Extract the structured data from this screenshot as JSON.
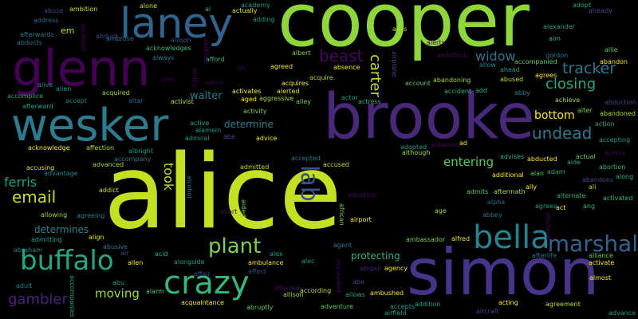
{
  "words": [
    {
      "text": "alice",
      "color": "#c3e021"
    },
    {
      "text": "cooper",
      "color": "#8ed63b"
    },
    {
      "text": "simon",
      "color": "#46338a"
    },
    {
      "text": "brooke",
      "color": "#482878"
    },
    {
      "text": "wesker",
      "color": "#2c7b8e"
    },
    {
      "text": "glenn",
      "color": "#440154"
    },
    {
      "text": "laney",
      "color": "#31648d"
    },
    {
      "text": "crazy",
      "color": "#35b779"
    },
    {
      "text": "bella",
      "color": "#26828e"
    },
    {
      "text": "buffalo",
      "color": "#22a884"
    },
    {
      "text": "marshal",
      "color": "#33638d"
    },
    {
      "text": "plant",
      "color": "#7ad151"
    },
    {
      "text": "lab",
      "color": "#3b528b"
    },
    {
      "text": "carter",
      "color": "#b8de29"
    },
    {
      "text": "tracker",
      "color": "#2a788e"
    },
    {
      "text": "undead",
      "color": "#2a788e"
    },
    {
      "text": "email",
      "color": "#c8e020"
    },
    {
      "text": "beast",
      "color": "#46075a"
    },
    {
      "text": "closing",
      "color": "#22a884"
    },
    {
      "text": "widow",
      "color": "#2c728e"
    },
    {
      "text": "gambler",
      "color": "#482475"
    },
    {
      "text": "ferris",
      "color": "#1f9e89"
    },
    {
      "text": "took",
      "color": "#bddf26"
    },
    {
      "text": "protecting",
      "color": "#2db27d"
    },
    {
      "text": "entering",
      "color": "#5ec962"
    },
    {
      "text": "moving",
      "color": "#a0da39"
    },
    {
      "text": "determine",
      "color": "#26828e"
    },
    {
      "text": "determines",
      "color": "#26828e"
    },
    {
      "text": "walter",
      "color": "#2a788e"
    },
    {
      "text": "bottom",
      "color": "#fde725"
    },
    {
      "text": "afterwards",
      "color": "#2a788e"
    },
    {
      "text": "address",
      "color": "#31688e"
    },
    {
      "text": "abducts",
      "color": "#2c728e"
    },
    {
      "text": "em",
      "color": "#b5de2b"
    },
    {
      "text": "ambrose",
      "color": "#2a788e"
    },
    {
      "text": "allison",
      "color": "#3b528b"
    },
    {
      "text": "alone",
      "color": "#c2df23"
    },
    {
      "text": "al",
      "color": "#2db27d"
    },
    {
      "text": "actually",
      "color": "#e5e419"
    },
    {
      "text": "academy",
      "color": "#1f9e89"
    },
    {
      "text": "adding",
      "color": "#1f9e89"
    },
    {
      "text": "alias",
      "color": "#b5de2b"
    },
    {
      "text": "ambition",
      "color": "#c8e020"
    },
    {
      "text": "abduct",
      "color": "#3e4a89"
    },
    {
      "text": "adopt",
      "color": "#22a884"
    },
    {
      "text": "already",
      "color": "#3e4a89"
    },
    {
      "text": "alexander",
      "color": "#1f9e89"
    },
    {
      "text": "aim",
      "color": "#35b779"
    },
    {
      "text": "allie",
      "color": "#5ec962"
    },
    {
      "text": "abandon",
      "color": "#fde725"
    },
    {
      "text": "gordon",
      "color": "#2a788e"
    },
    {
      "text": "acknowledges",
      "color": "#35b779"
    },
    {
      "text": "always",
      "color": "#26828e"
    },
    {
      "text": "afford",
      "color": "#35b779"
    },
    {
      "text": "agreed",
      "color": "#fde725"
    },
    {
      "text": "albert",
      "color": "#7ad151"
    },
    {
      "text": "absence",
      "color": "#fde725"
    },
    {
      "text": "airplane",
      "color": "#3e4a89"
    },
    {
      "text": "ambitious",
      "color": "#46075a"
    },
    {
      "text": "allow",
      "color": "#25858e"
    },
    {
      "text": "ahead",
      "color": "#1f9e89"
    },
    {
      "text": "accompanied",
      "color": "#5ec962"
    },
    {
      "text": "agrees",
      "color": "#fde725"
    },
    {
      "text": "abused",
      "color": "#b8de29"
    },
    {
      "text": "alive",
      "color": "#25858e"
    },
    {
      "text": "alien",
      "color": "#1f9e89"
    },
    {
      "text": "also",
      "color": "#440154"
    },
    {
      "text": "ability",
      "color": "#440154"
    },
    {
      "text": "aaron",
      "color": "#440154"
    },
    {
      "text": "acquires",
      "color": "#fde725"
    },
    {
      "text": "acquire",
      "color": "#a0da39"
    },
    {
      "text": "account",
      "color": "#5ec962"
    },
    {
      "text": "abandoning",
      "color": "#a0da39"
    },
    {
      "text": "abby",
      "color": "#26828e"
    },
    {
      "text": "accomplice",
      "color": "#22a884"
    },
    {
      "text": "acquired",
      "color": "#a0da39"
    },
    {
      "text": "activates",
      "color": "#fde725"
    },
    {
      "text": "aggressive",
      "color": "#a0da39"
    },
    {
      "text": "alerted",
      "color": "#e5e419"
    },
    {
      "text": "actor",
      "color": "#1f9e89"
    },
    {
      "text": "accident",
      "color": "#2db27d"
    },
    {
      "text": "add",
      "color": "#2db27d"
    },
    {
      "text": "achieve",
      "color": "#a0da39"
    },
    {
      "text": "abduction",
      "color": "#3e4a89"
    },
    {
      "text": "accept",
      "color": "#26828e"
    },
    {
      "text": "altar",
      "color": "#31688e"
    },
    {
      "text": "activist",
      "color": "#b8de29"
    },
    {
      "text": "aged",
      "color": "#fde725"
    },
    {
      "text": "alley",
      "color": "#7ad151"
    },
    {
      "text": "actress",
      "color": "#2db27d"
    },
    {
      "text": "alter",
      "color": "#7ad151"
    },
    {
      "text": "abandoned",
      "color": "#b5de2b"
    },
    {
      "text": "afterward",
      "color": "#22a884"
    },
    {
      "text": "active",
      "color": "#1f9e89"
    },
    {
      "text": "activity",
      "color": "#7ad151"
    },
    {
      "text": "action",
      "color": "#22a884"
    },
    {
      "text": "acknowledge",
      "color": "#fde725"
    },
    {
      "text": "affection",
      "color": "#b5de2b"
    },
    {
      "text": "advice",
      "color": "#fde725"
    },
    {
      "text": "accepting",
      "color": "#1f9e89"
    },
    {
      "text": "ad",
      "color": "#fde725"
    },
    {
      "text": "adopted",
      "color": "#1f9e89"
    },
    {
      "text": "although",
      "color": "#a0da39"
    },
    {
      "text": "accepted",
      "color": "#2a788e"
    },
    {
      "text": "advises",
      "color": "#2db27d"
    },
    {
      "text": "abducted",
      "color": "#fde725"
    },
    {
      "text": "actual",
      "color": "#5ec962"
    },
    {
      "text": "aide",
      "color": "#22a884"
    },
    {
      "text": "across",
      "color": "#46075a"
    },
    {
      "text": "albright",
      "color": "#1f9e89"
    },
    {
      "text": "accompany",
      "color": "#2c728e"
    },
    {
      "text": "advanced",
      "color": "#a0da39"
    },
    {
      "text": "accusing",
      "color": "#e5e419"
    },
    {
      "text": "advantage",
      "color": "#26828e"
    },
    {
      "text": "admitted",
      "color": "#b8de29"
    },
    {
      "text": "accused",
      "color": "#b8de29"
    },
    {
      "text": "additional",
      "color": "#fde725"
    },
    {
      "text": "alan",
      "color": "#5ec962"
    },
    {
      "text": "adam",
      "color": "#22a884"
    },
    {
      "text": "abortion",
      "color": "#35b779"
    },
    {
      "text": "ali",
      "color": "#b8de29"
    },
    {
      "text": "ally",
      "color": "#fde725"
    },
    {
      "text": "alternate",
      "color": "#2db27d"
    },
    {
      "text": "activated",
      "color": "#35b779"
    },
    {
      "text": "addict",
      "color": "#c8e020"
    },
    {
      "text": "alcohol",
      "color": "#2a788e"
    },
    {
      "text": "admits",
      "color": "#5ec962"
    },
    {
      "text": "aftermath",
      "color": "#a0da39"
    },
    {
      "text": "along",
      "color": "#2db27d"
    },
    {
      "text": "adoptive",
      "color": "#46075a"
    },
    {
      "text": "alpha",
      "color": "#31688e"
    },
    {
      "text": "agrees",
      "color": "#1f9e89"
    },
    {
      "text": "act",
      "color": "#fde725"
    },
    {
      "text": "ang",
      "color": "#35b779"
    },
    {
      "text": "allowing",
      "color": "#a0da39"
    },
    {
      "text": "agreeing",
      "color": "#26828e"
    },
    {
      "text": "abort",
      "color": "#46075a"
    },
    {
      "text": "aided",
      "color": "#7ad151"
    },
    {
      "text": "age",
      "color": "#a0da39"
    },
    {
      "text": "abbey",
      "color": "#2c728e"
    },
    {
      "text": "african",
      "color": "#7ad151"
    },
    {
      "text": "airport",
      "color": "#fde725"
    },
    {
      "text": "admitting",
      "color": "#1f9e89"
    },
    {
      "text": "align",
      "color": "#e5e419"
    },
    {
      "text": "abraham",
      "color": "#26828e"
    },
    {
      "text": "abusive",
      "color": "#2a788e"
    },
    {
      "text": "air",
      "color": "#3e4a89"
    },
    {
      "text": "acid",
      "color": "#2db27d"
    },
    {
      "text": "alex",
      "color": "#1f9e89"
    },
    {
      "text": "agent",
      "color": "#2a788e"
    },
    {
      "text": "ambassador",
      "color": "#7ad151"
    },
    {
      "text": "alfred",
      "color": "#e5e419"
    },
    {
      "text": "afterlife",
      "color": "#2a788e"
    },
    {
      "text": "alliance",
      "color": "#5ec962"
    },
    {
      "text": "activate",
      "color": "#fde725"
    },
    {
      "text": "allen",
      "color": "#fde725"
    },
    {
      "text": "alongside",
      "color": "#1f9e89"
    },
    {
      "text": "ambulance",
      "color": "#fde725"
    },
    {
      "text": "alec",
      "color": "#1f9e89"
    },
    {
      "text": "agency",
      "color": "#fde725"
    },
    {
      "text": "abigail",
      "color": "#482475"
    },
    {
      "text": "affect",
      "color": "#3e4a89"
    },
    {
      "text": "abe",
      "color": "#3e4a89"
    },
    {
      "text": "affair",
      "color": "#3e4a89"
    },
    {
      "text": "abu",
      "color": "#1f9e89"
    },
    {
      "text": "alarm",
      "color": "#5ec962"
    },
    {
      "text": "adult",
      "color": "#26828e"
    },
    {
      "text": "accompanies",
      "color": "#1f9e89"
    },
    {
      "text": "acquaintance",
      "color": "#fde725"
    },
    {
      "text": "abruptly",
      "color": "#5ec962"
    },
    {
      "text": "allison",
      "color": "#a0da39"
    },
    {
      "text": "according",
      "color": "#b8de29"
    },
    {
      "text": "allows",
      "color": "#1f9e89"
    },
    {
      "text": "ambushed",
      "color": "#fde725"
    },
    {
      "text": "accounted",
      "color": "#46075a"
    },
    {
      "text": "accepts",
      "color": "#1f9e89"
    },
    {
      "text": "airfield",
      "color": "#1f9e89"
    },
    {
      "text": "addition",
      "color": "#1f9e89"
    },
    {
      "text": "aircraft",
      "color": "#3e4a89"
    },
    {
      "text": "adventure",
      "color": "#5ec962"
    },
    {
      "text": "acting",
      "color": "#fde725"
    },
    {
      "text": "agreement",
      "color": "#b8de29"
    },
    {
      "text": "almost",
      "color": "#fde725"
    },
    {
      "text": "advance",
      "color": "#1f9e89"
    },
    {
      "text": "alamein",
      "color": "#1f9e89"
    },
    {
      "text": "admiral",
      "color": "#1f9e89"
    },
    {
      "text": "achieved",
      "color": "#46075a"
    },
    {
      "text": "affected",
      "color": "#46075a"
    },
    {
      "text": "abandons",
      "color": "#3e4a89"
    },
    {
      "text": "alcoholic",
      "color": "#46075a"
    },
    {
      "text": "ah",
      "color": "#46075a"
    },
    {
      "text": "abuse",
      "color": "#3e4a89"
    },
    {
      "text": "abe",
      "color": "#3e4a89"
    },
    {
      "text": "absolute",
      "color": "#46075a"
    },
    {
      "text": "alerts",
      "color": "#46075a"
    },
    {
      "text": "abilities",
      "color": "#46075a"
    }
  ]
}
